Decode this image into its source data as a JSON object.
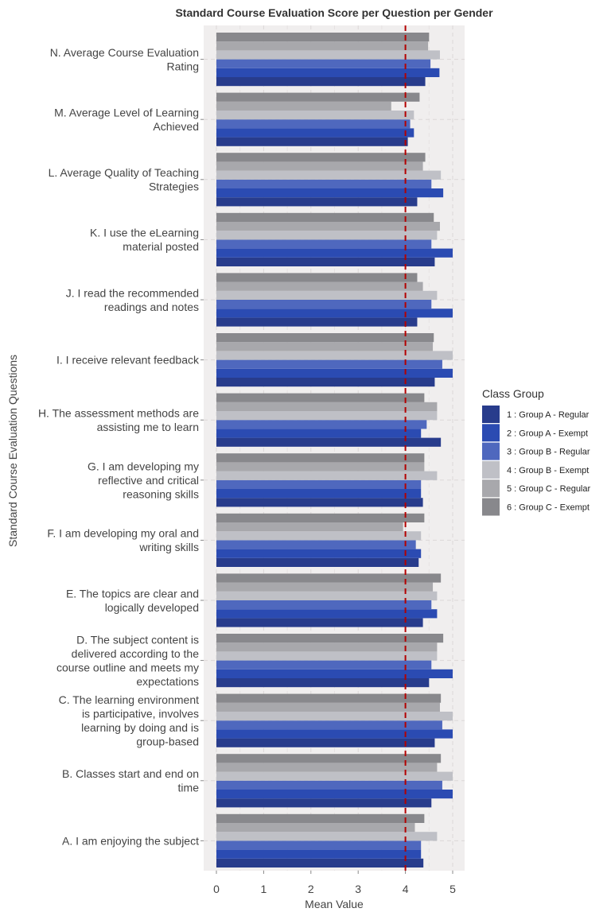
{
  "chart_data": {
    "type": "bar",
    "orientation": "horizontal",
    "title": "Standard Course Evaluation Score per Question per Gender",
    "xlabel": "Mean Value",
    "ylabel": "Standard Course Evaluation Questions",
    "xlim": [
      0,
      5
    ],
    "x_ticks": [
      "0",
      "1",
      "2",
      "3",
      "4",
      "5"
    ],
    "grid": true,
    "reference_line": {
      "x": 4,
      "color": "#b30000",
      "style": "dashed"
    },
    "legend": {
      "title": "Class Group",
      "placement": "right"
    },
    "categories": [
      [
        "N. Average Course Evaluation",
        "Rating"
      ],
      [
        "M. Average Level of Learning",
        "Achieved"
      ],
      [
        "L. Average Quality of Teaching",
        "Strategies"
      ],
      [
        "K. I use the eLearning",
        "material posted"
      ],
      [
        "J. I read the recommended",
        "readings and notes"
      ],
      [
        "I. I receive relevant feedback"
      ],
      [
        "H. The assessment methods are",
        "assisting me to learn"
      ],
      [
        "G. I am developing my",
        "reflective and critical",
        "reasoning skills"
      ],
      [
        "F. I am developing my oral and",
        "writing skills"
      ],
      [
        "E. The topics are clear and",
        "logically developed"
      ],
      [
        "D. The subject content is",
        "delivered according to the",
        "course outline and meets my",
        "expectations"
      ],
      [
        "C. The learning environment",
        "is participative, involves",
        "learning by doing and is",
        "group-based"
      ],
      [
        "B. Classes start and end on",
        "time"
      ],
      [
        "A. I am enjoying the subject"
      ]
    ],
    "series": [
      {
        "name": "1 : Group A - Regular",
        "color": "#283c8c",
        "values": [
          4.42,
          4.05,
          4.25,
          4.62,
          4.25,
          4.62,
          4.75,
          4.37,
          4.28,
          4.37,
          4.5,
          4.62,
          4.55,
          4.38
        ]
      },
      {
        "name": "2 : Group A - Exempt",
        "color": "#2b4bb2",
        "values": [
          4.72,
          4.18,
          4.8,
          5.0,
          5.0,
          5.0,
          4.33,
          4.33,
          4.33,
          4.67,
          5.0,
          5.0,
          5.0,
          4.33
        ]
      },
      {
        "name": "3 : Group B - Regular",
        "color": "#4f68be",
        "values": [
          4.53,
          4.1,
          4.55,
          4.55,
          4.55,
          4.78,
          4.45,
          4.33,
          4.22,
          4.55,
          4.55,
          4.78,
          4.78,
          4.33
        ]
      },
      {
        "name": "4 : Group B - Exempt",
        "color": "#bfc0c6",
        "values": [
          4.73,
          4.18,
          4.75,
          4.67,
          4.67,
          5.0,
          4.67,
          4.67,
          4.33,
          4.67,
          4.67,
          5.0,
          5.0,
          4.67
        ]
      },
      {
        "name": "5 : Group C - Regular",
        "color": "#a8a8ac",
        "values": [
          4.48,
          3.7,
          4.37,
          4.73,
          4.37,
          4.58,
          4.67,
          4.4,
          3.95,
          4.58,
          4.67,
          4.73,
          4.67,
          4.2
        ]
      },
      {
        "name": "6 : Group C - Exempt",
        "color": "#88888c",
        "values": [
          4.5,
          4.3,
          4.42,
          4.6,
          4.25,
          4.6,
          4.4,
          4.4,
          4.4,
          4.75,
          4.8,
          4.75,
          4.75,
          4.4
        ]
      }
    ]
  }
}
